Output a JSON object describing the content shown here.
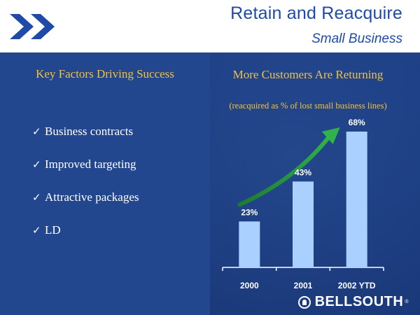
{
  "header": {
    "title": "Retain and Reacquire",
    "subtitle": "Small Business",
    "logo": "double-chevron-icon"
  },
  "left": {
    "heading": "Key Factors Driving Success",
    "bullets": [
      "Business contracts",
      "Improved targeting",
      "Attractive packages",
      "LD"
    ],
    "check_glyph": "✓"
  },
  "chart": {
    "title": "More Customers Are Returning",
    "subtitle": "(reacquired as % of lost small business lines)"
  },
  "chart_data": {
    "type": "bar",
    "categories": [
      "2000",
      "2001",
      "2002 YTD"
    ],
    "values": [
      23,
      43,
      68
    ],
    "value_labels": [
      "23%",
      "43%",
      "68%"
    ],
    "ylim": [
      0,
      75
    ],
    "grid": false,
    "trend_arrow": true
  },
  "footer": {
    "brand": "BELLSOUTH",
    "brand_mark": "®"
  },
  "colors": {
    "title_blue": "#1f4aa8",
    "background_blue": "#1c3d82",
    "heading_gold": "#f3c23b",
    "bar_fill": "#a9d0ff",
    "arrow_green": "#2fb34a",
    "text_white": "#ffffff"
  }
}
